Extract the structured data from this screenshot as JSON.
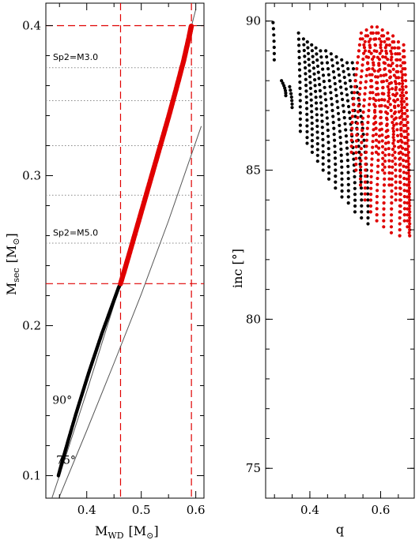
{
  "chart_data": [
    {
      "type": "scatter",
      "panel": "left",
      "xlabel": "M",
      "xlabel_sub": "WD",
      "xlabel_unit": "[M",
      "xlabel_unit_close": "]",
      "ylabel": "M",
      "ylabel_sub": "sec",
      "ylabel_unit": "[M",
      "ylabel_unit_close": "]",
      "sun_symbol": "⊙",
      "xlim": [
        0.325,
        0.615
      ],
      "ylim": [
        0.085,
        0.415
      ],
      "xticks": [
        0.4,
        0.5,
        0.6
      ],
      "xtick_labels": [
        "0.4",
        "0.5",
        "0.6"
      ],
      "yticks": [
        0.1,
        0.2,
        0.3,
        0.4
      ],
      "ytick_labels": [
        "0.1",
        "0.2",
        "0.3",
        "0.4"
      ],
      "colors": {
        "black_series": "#000000",
        "red_series": "#e00000",
        "dashed": "#e00000",
        "dotted": "#888888",
        "curve": "#555555"
      },
      "dashed_vlines": [
        0.462,
        0.592
      ],
      "dashed_hlines": [
        0.228,
        0.4
      ],
      "dotted_hlines": [
        0.372,
        0.35,
        0.32,
        0.287,
        0.255
      ],
      "annotations": [
        {
          "text": "Sp2=M3.0",
          "x": 0.338,
          "y": 0.377
        },
        {
          "text": "Sp2=M5.0",
          "x": 0.338,
          "y": 0.26
        },
        {
          "text": "90°",
          "x": 0.337,
          "y": 0.148
        },
        {
          "text": "75°",
          "x": 0.344,
          "y": 0.108
        }
      ],
      "series": [
        {
          "color_key": "black_series",
          "x": [
            0.348,
            0.357,
            0.368,
            0.38,
            0.392,
            0.404,
            0.416,
            0.428,
            0.44,
            0.45,
            0.458,
            0.462
          ],
          "y": [
            0.1,
            0.112,
            0.126,
            0.141,
            0.155,
            0.169,
            0.182,
            0.195,
            0.207,
            0.217,
            0.225,
            0.228
          ]
        },
        {
          "color_key": "red_series",
          "x": [
            0.462,
            0.475,
            0.49,
            0.505,
            0.52,
            0.535,
            0.55,
            0.565,
            0.578,
            0.588,
            0.592
          ],
          "y": [
            0.228,
            0.244,
            0.263,
            0.282,
            0.301,
            0.32,
            0.339,
            0.359,
            0.377,
            0.393,
            0.4
          ]
        }
      ],
      "curves": [
        {
          "name": "90°",
          "x": [
            0.325,
            0.35,
            0.4,
            0.45,
            0.5,
            0.55,
            0.6
          ],
          "y": [
            0.073,
            0.1,
            0.156,
            0.214,
            0.276,
            0.34,
            0.411
          ]
        },
        {
          "name": "75°",
          "x": [
            0.33,
            0.35,
            0.4,
            0.45,
            0.5,
            0.55,
            0.61
          ],
          "y": [
            0.07,
            0.086,
            0.13,
            0.175,
            0.221,
            0.27,
            0.333
          ]
        }
      ]
    },
    {
      "type": "scatter",
      "panel": "right",
      "xlabel": "q",
      "ylabel": "inc [°]",
      "xlim": [
        0.275,
        0.695
      ],
      "ylim": [
        74.0,
        90.6
      ],
      "xticks": [
        0.4,
        0.6
      ],
      "xtick_labels": [
        "0.4",
        "0.6"
      ],
      "yticks": [
        75,
        80,
        85,
        90
      ],
      "ytick_labels": [
        "75",
        "80",
        "85",
        "90"
      ],
      "colors": {
        "black_series": "#000000",
        "red_series": "#e00000"
      },
      "series": [
        {
          "color_key": "black_series",
          "arcs": [
            {
              "q0": 0.296,
              "top": 89.95,
              "bottom": 88.7,
              "width": 0.004
            },
            {
              "q0": 0.32,
              "top": 88.0,
              "bottom": 87.5,
              "width": 0.014
            },
            {
              "q0": 0.343,
              "top": 87.8,
              "bottom": 87.1,
              "width": 0.008
            },
            {
              "q0": 0.368,
              "top": 89.6,
              "bottom": 86.3,
              "width": 0.006
            },
            {
              "q0": 0.382,
              "top": 89.4,
              "bottom": 85.9,
              "width": 0.012
            },
            {
              "q0": 0.393,
              "top": 89.3,
              "bottom": 85.6,
              "width": 0.016
            },
            {
              "q0": 0.405,
              "top": 89.2,
              "bottom": 85.3,
              "width": 0.02
            },
            {
              "q0": 0.417,
              "top": 89.1,
              "bottom": 85.0,
              "width": 0.024
            },
            {
              "q0": 0.43,
              "top": 89.0,
              "bottom": 84.7,
              "width": 0.028
            },
            {
              "q0": 0.445,
              "top": 89.0,
              "bottom": 84.4,
              "width": 0.032
            },
            {
              "q0": 0.46,
              "top": 88.9,
              "bottom": 84.1,
              "width": 0.036
            },
            {
              "q0": 0.475,
              "top": 88.8,
              "bottom": 83.9,
              "width": 0.04
            },
            {
              "q0": 0.49,
              "top": 88.7,
              "bottom": 83.6,
              "width": 0.044
            },
            {
              "q0": 0.505,
              "top": 88.6,
              "bottom": 83.4,
              "width": 0.048
            },
            {
              "q0": 0.52,
              "top": 88.6,
              "bottom": 83.2,
              "width": 0.052
            }
          ]
        },
        {
          "color_key": "red_series",
          "arcs": [
            {
              "q0": 0.545,
              "top": 89.6,
              "bottom": 85.6,
              "width": 0.05
            },
            {
              "q0": 0.56,
              "top": 89.7,
              "bottom": 85.0,
              "width": 0.054
            },
            {
              "q0": 0.575,
              "top": 89.8,
              "bottom": 84.5,
              "width": 0.058
            },
            {
              "q0": 0.59,
              "top": 89.8,
              "bottom": 84.0,
              "width": 0.062
            },
            {
              "q0": 0.605,
              "top": 89.7,
              "bottom": 83.6,
              "width": 0.06
            },
            {
              "q0": 0.62,
              "top": 89.6,
              "bottom": 83.3,
              "width": 0.056
            },
            {
              "q0": 0.635,
              "top": 89.5,
              "bottom": 83.1,
              "width": 0.048
            },
            {
              "q0": 0.65,
              "top": 89.3,
              "bottom": 82.9,
              "width": 0.036
            },
            {
              "q0": 0.665,
              "top": 89.2,
              "bottom": 82.8,
              "width": 0.02
            }
          ]
        }
      ]
    }
  ]
}
